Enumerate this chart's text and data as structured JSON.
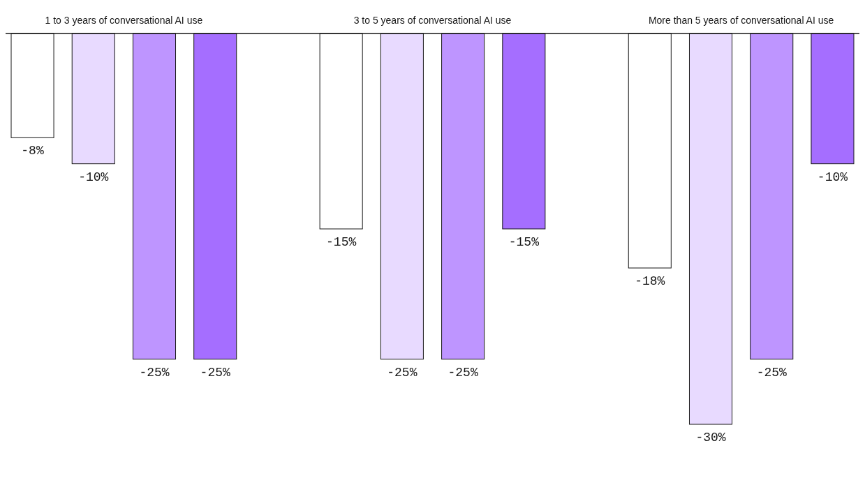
{
  "chart_data": {
    "type": "bar",
    "categories": [
      "1 to 3 years of conversational AI use",
      "3 to 5 years of conversational AI use",
      "More than 5 years of conversational AI use"
    ],
    "series": [
      {
        "color": "#ffffff",
        "values": [
          -8,
          -15,
          -18
        ],
        "value_labels": [
          "-8%",
          "-15%",
          "-18%"
        ]
      },
      {
        "color": "#e8daff",
        "values": [
          -10,
          -25,
          -30
        ],
        "value_labels": [
          "-10%",
          "-25%",
          "-30%"
        ]
      },
      {
        "color": "#be95ff",
        "values": [
          -25,
          -25,
          -25
        ],
        "value_labels": [
          "-25%",
          "-25%",
          "-25%"
        ]
      },
      {
        "color": "#a56eff",
        "values": [
          -25,
          -15,
          -10
        ],
        "value_labels": [
          "-25%",
          "-15%",
          "-10%"
        ]
      }
    ]
  }
}
